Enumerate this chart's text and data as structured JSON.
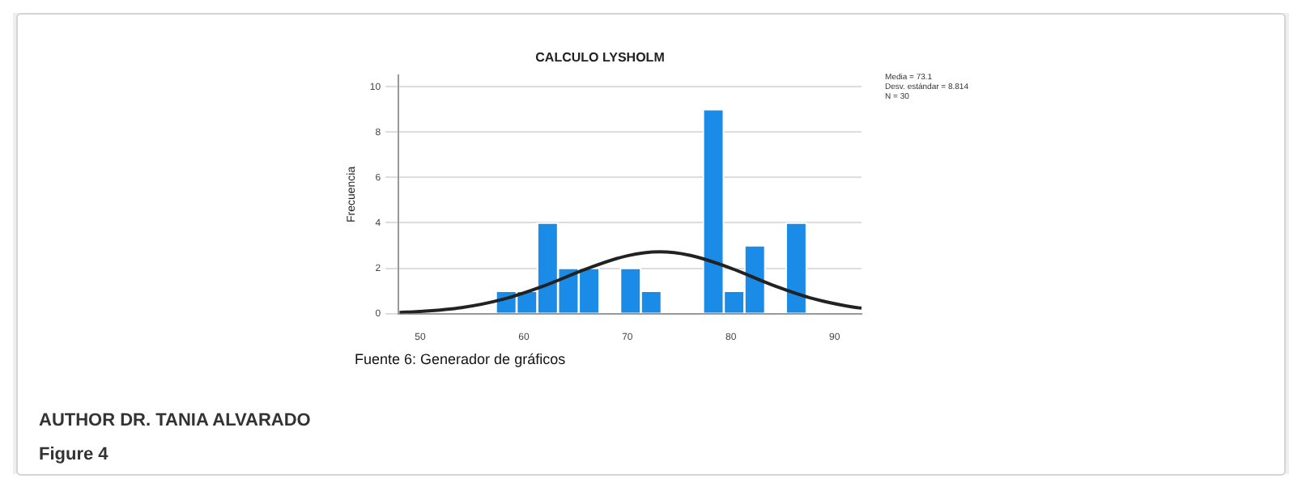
{
  "chart_data": {
    "type": "histogram",
    "title": "CALCULO LYSHOLM",
    "ylabel": "Frecuencia",
    "bins": [
      57.3,
      59.3,
      61.3,
      63.3,
      65.3,
      67.3,
      69.3,
      71.3,
      73.3,
      75.3,
      77.3,
      79.3,
      81.3,
      83.3,
      85.3,
      87.3
    ],
    "values": [
      1,
      1,
      4,
      2,
      2,
      0,
      2,
      1,
      0,
      0,
      9,
      1,
      3,
      0,
      4
    ],
    "color": "#1a8be6",
    "series": [
      {
        "type": "line",
        "color": "#222222",
        "x": [
          48,
          50,
          54,
          58,
          62,
          66,
          70,
          73.1,
          76,
          80,
          84,
          88,
          92,
          92.6
        ],
        "values": [
          0.05,
          0.09,
          0.26,
          0.63,
          1.23,
          1.96,
          2.55,
          2.72,
          2.57,
          2.0,
          1.26,
          0.65,
          0.27,
          0.24
        ]
      }
    ],
    "xlim": [
      47.9,
      92.6
    ],
    "xticks": [
      50,
      60,
      70,
      80,
      90
    ],
    "ylim": [
      0,
      10.5
    ],
    "yticks": [
      0,
      2,
      4,
      6,
      8,
      10
    ],
    "grid": "y",
    "marker": "none",
    "annotations": [
      "Media = 73.1",
      "Desv. estándar = 8.814",
      "N = 30",
      "Fuente 6: Generador de gráficos",
      "AUTHOR DR. TANIA ALVARADO",
      "Figure 4"
    ]
  }
}
